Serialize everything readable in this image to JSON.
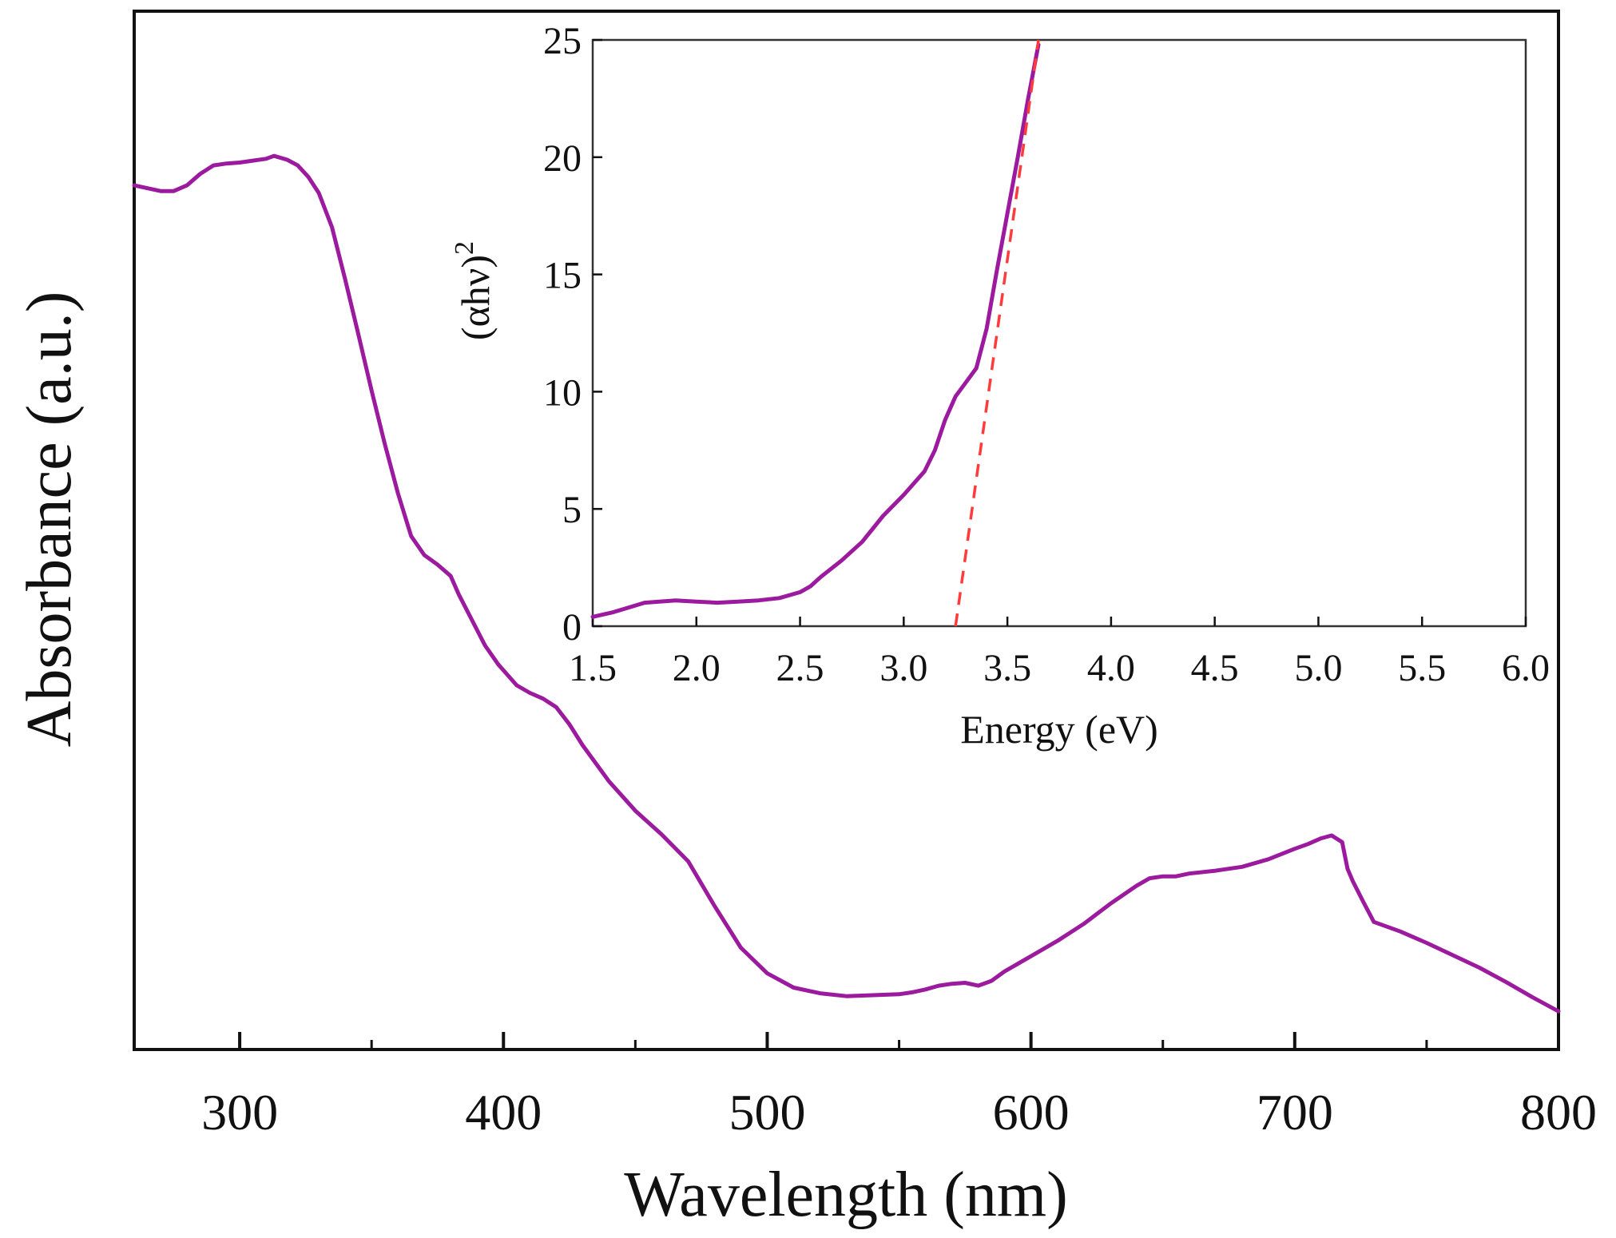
{
  "colors": {
    "curve": "#9b1a9e",
    "fit_line": "#ff3b3b",
    "axis": "#111111"
  },
  "chart_data": [
    {
      "id": "main",
      "type": "line",
      "title": "",
      "xlabel": "Wavelength (nm)",
      "ylabel": "Absorbance (a.u.)",
      "xlim": [
        260,
        800
      ],
      "ylim": [
        0,
        1
      ],
      "xticks": [
        300,
        400,
        500,
        600,
        700,
        800
      ],
      "xtick_labels": [
        "300",
        "400",
        "500",
        "600",
        "700",
        "800"
      ],
      "minor_xticks": [
        350,
        450,
        550,
        650,
        750
      ],
      "yticks": [],
      "grid": false,
      "legend": "none",
      "series": [
        {
          "name": "Absorbance",
          "x": [
            260,
            270,
            275,
            280,
            285,
            290,
            295,
            300,
            305,
            310,
            313,
            318,
            322,
            326,
            330,
            335,
            340,
            345,
            350,
            355,
            360,
            365,
            370,
            375,
            380,
            383,
            388,
            393,
            398,
            405,
            410,
            415,
            420,
            425,
            430,
            440,
            450,
            460,
            470,
            480,
            490,
            500,
            510,
            520,
            530,
            540,
            550,
            555,
            560,
            565,
            570,
            575,
            580,
            585,
            590,
            600,
            610,
            620,
            630,
            640,
            645,
            650,
            655,
            660,
            670,
            680,
            690,
            700,
            705,
            710,
            714,
            718,
            720,
            722,
            726,
            730,
            740,
            750,
            760,
            770,
            780,
            790,
            800
          ],
          "y": [
            0.889,
            0.883,
            0.883,
            0.889,
            0.901,
            0.91,
            0.912,
            0.913,
            0.915,
            0.917,
            0.92,
            0.916,
            0.91,
            0.898,
            0.881,
            0.845,
            0.79,
            0.732,
            0.673,
            0.617,
            0.565,
            0.52,
            0.5,
            0.49,
            0.478,
            0.459,
            0.432,
            0.405,
            0.385,
            0.363,
            0.355,
            0.349,
            0.34,
            0.322,
            0.3,
            0.262,
            0.231,
            0.206,
            0.178,
            0.131,
            0.087,
            0.06,
            0.045,
            0.039,
            0.036,
            0.037,
            0.038,
            0.04,
            0.043,
            0.047,
            0.049,
            0.05,
            0.047,
            0.052,
            0.062,
            0.078,
            0.094,
            0.112,
            0.133,
            0.152,
            0.16,
            0.162,
            0.162,
            0.165,
            0.168,
            0.172,
            0.18,
            0.191,
            0.196,
            0.202,
            0.205,
            0.198,
            0.17,
            0.157,
            0.135,
            0.114,
            0.104,
            0.092,
            0.079,
            0.066,
            0.051,
            0.035,
            0.02
          ]
        }
      ]
    },
    {
      "id": "inset",
      "type": "line",
      "title": "",
      "xlabel": "Energy (eV)",
      "ylabel_base": "(αhν)",
      "ylabel_exp": "2",
      "xlim": [
        1.5,
        6.0
      ],
      "ylim": [
        0,
        25
      ],
      "xticks": [
        1.5,
        2.0,
        2.5,
        3.0,
        3.5,
        4.0,
        4.5,
        5.0,
        5.5,
        6.0
      ],
      "xtick_labels": [
        "1.5",
        "2.0",
        "2.5",
        "3.0",
        "3.5",
        "4.0",
        "4.5",
        "5.0",
        "5.5",
        "6.0"
      ],
      "yticks": [
        0,
        5,
        10,
        15,
        20,
        25
      ],
      "ytick_labels": [
        "0",
        "5",
        "10",
        "15",
        "20",
        "25"
      ],
      "grid": false,
      "legend": "none",
      "series": [
        {
          "name": "Tauc plot",
          "x": [
            1.5,
            1.6,
            1.75,
            1.9,
            2.0,
            2.1,
            2.2,
            2.3,
            2.4,
            2.5,
            2.55,
            2.6,
            2.7,
            2.8,
            2.9,
            3.0,
            3.1,
            3.15,
            3.2,
            3.25,
            3.3,
            3.35,
            3.4,
            3.45,
            3.5,
            3.55,
            3.6,
            3.65
          ],
          "y": [
            0.4,
            0.6,
            1.0,
            1.1,
            1.05,
            1.0,
            1.05,
            1.1,
            1.2,
            1.45,
            1.7,
            2.1,
            2.8,
            3.6,
            4.7,
            5.6,
            6.6,
            7.5,
            8.8,
            9.8,
            10.4,
            11.0,
            12.7,
            15.2,
            17.6,
            20.0,
            22.5,
            24.8
          ]
        },
        {
          "name": "Linear fit",
          "style": "dashed",
          "x": [
            3.25,
            3.65
          ],
          "y": [
            0.0,
            25.0
          ]
        }
      ]
    }
  ]
}
